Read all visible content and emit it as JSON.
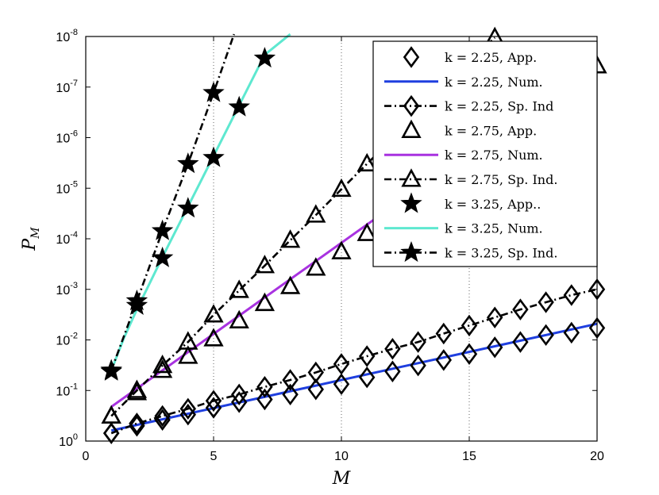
{
  "chart_data": {
    "type": "line",
    "xlabel": "M",
    "ylabel": "P_M",
    "xlim": [
      0,
      20
    ],
    "ylim_exp": [
      -8,
      0
    ],
    "y_scale": "log",
    "grid": true,
    "legend_position": "top-right",
    "x_ticks": [
      0,
      5,
      10,
      15,
      20
    ],
    "y_tick_exponents": [
      0,
      -1,
      -2,
      -3,
      -4,
      -5,
      -6,
      -7,
      -8
    ],
    "series": [
      {
        "name": "k = 2.25, App.",
        "style": "marker",
        "marker": "diamond",
        "color": "#000000",
        "x": [
          1,
          2,
          3,
          4,
          5,
          6,
          7,
          8,
          9,
          10,
          11,
          12,
          13,
          14,
          15,
          16,
          17,
          18,
          19,
          20
        ],
        "y": [
          0.7,
          0.5,
          0.38,
          0.3,
          0.22,
          0.17,
          0.15,
          0.12,
          0.095,
          0.075,
          0.055,
          0.042,
          0.032,
          0.025,
          0.019,
          0.014,
          0.011,
          0.008,
          0.0072,
          0.0058
        ]
      },
      {
        "name": "k = 2.25, Num.",
        "style": "solid",
        "color": "#1f3fdf",
        "x": [
          1,
          20
        ],
        "y": [
          0.62,
          0.0048
        ]
      },
      {
        "name": "k = 2.25, Sp. Ind",
        "style": "dashdot",
        "marker": "diamond",
        "color": "#000000",
        "x": [
          1,
          2,
          3,
          4,
          5,
          6,
          7,
          8,
          9,
          10,
          11,
          12,
          13,
          14,
          15,
          16,
          17,
          18,
          19,
          20
        ],
        "y": [
          0.7,
          0.45,
          0.32,
          0.23,
          0.16,
          0.12,
          0.085,
          0.062,
          0.044,
          0.03,
          0.021,
          0.015,
          0.011,
          0.0075,
          0.0052,
          0.0036,
          0.0025,
          0.0018,
          0.0013,
          0.001
        ]
      },
      {
        "name": "k = 2.75, App.",
        "style": "marker",
        "marker": "triangle",
        "color": "#000000",
        "x": [
          1,
          2,
          3,
          4,
          5,
          6,
          7,
          8,
          9,
          10,
          11,
          12,
          13,
          14,
          15,
          16,
          17,
          18,
          19,
          20
        ],
        "y": [
          0.32,
          0.11,
          0.04,
          0.021,
          0.0095,
          0.0042,
          0.0019,
          0.00088,
          0.00038,
          0.00018,
          7.85e-05,
          3.5e-05,
          1.55e-05,
          6.8e-06,
          2.9e-06,
          1.3e-06,
          5.8e-07,
          2.5e-07,
          1.05e-07,
          3.8e-08
        ]
      },
      {
        "name": "k = 2.75, Num.",
        "style": "solid",
        "color": "#a832e0",
        "x": [
          1,
          20
        ],
        "y": [
          0.21,
          3e-08
        ]
      },
      {
        "name": "k = 2.75, Sp. Ind.",
        "style": "dashdot",
        "marker": "triangle",
        "color": "#000000",
        "x": [
          1,
          2,
          3,
          4,
          5,
          6,
          7,
          8,
          9,
          10,
          11,
          12,
          13,
          14,
          15,
          16
        ],
        "y": [
          0.32,
          0.1,
          0.032,
          0.011,
          0.0032,
          0.00105,
          0.00034,
          0.000107,
          3.4e-05,
          1.05e-05,
          3.3e-06,
          1.05e-06,
          3.3e-07,
          1.05e-07,
          3.3e-08,
          1.05e-08
        ]
      },
      {
        "name": "k = 3.25, App..",
        "style": "marker",
        "marker": "star",
        "color": "#000000",
        "x": [
          1,
          2,
          3,
          4,
          5,
          6,
          7
        ],
        "y": [
          0.042,
          0.0021,
          0.00024,
          2.5e-05,
          2.5e-06,
          2.5e-07,
          2.7e-08
        ]
      },
      {
        "name": "k = 3.25, Num.",
        "style": "solid",
        "color": "#5ee8d0",
        "x": [
          1,
          1.5,
          2,
          3,
          4,
          5,
          6,
          7,
          8
        ],
        "y": [
          0.04,
          0.009,
          0.0025,
          0.00023,
          2.3e-05,
          2.3e-06,
          2.3e-07,
          2.3e-08,
          9e-09
        ]
      },
      {
        "name": "k = 3.25, Sp. Ind.",
        "style": "dashdot",
        "marker": "star",
        "color": "#000000",
        "x": [
          1,
          2,
          3,
          4,
          5,
          5.8
        ],
        "y": [
          0.04,
          0.0017,
          7e-05,
          3.3e-06,
          1.3e-07,
          9e-09
        ]
      }
    ]
  }
}
